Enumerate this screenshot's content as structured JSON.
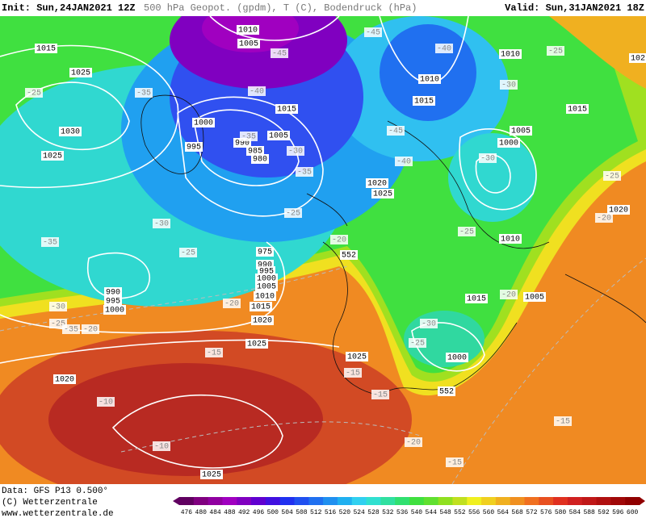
{
  "header": {
    "init": "Init: Sun,24JAN2021 12Z",
    "title": "500 hPa Geopot. (gpdm), T (C), Bodendruck (hPa)",
    "valid": "Valid: Sun,31JAN2021 18Z"
  },
  "footer": {
    "data": "Data: GFS P13 0.500°",
    "copyright": "(C) Wetterzentrale",
    "url": "www.wetterzentrale.de"
  },
  "colorbar": {
    "labels": [
      476,
      480,
      484,
      488,
      492,
      496,
      500,
      504,
      508,
      512,
      516,
      520,
      524,
      528,
      532,
      536,
      540,
      544,
      548,
      552,
      556,
      560,
      564,
      568,
      572,
      576,
      580,
      584,
      588,
      592,
      596,
      600
    ],
    "colors": [
      "#600060",
      "#800080",
      "#9000a0",
      "#a000c0",
      "#8000c0",
      "#6000d0",
      "#4010e0",
      "#2030f0",
      "#2050f0",
      "#2070f0",
      "#2090f0",
      "#20b0f0",
      "#30d0f0",
      "#30e0d0",
      "#30e0a0",
      "#30e070",
      "#40e040",
      "#60e030",
      "#90e020",
      "#c0e020",
      "#f0f020",
      "#f0d020",
      "#f0b020",
      "#f09020",
      "#f07020",
      "#e85020",
      "#e03020",
      "#d02020",
      "#c01818",
      "#b01010",
      "#a00808",
      "#900000"
    ]
  },
  "isobar_labels": [
    "1010",
    "1005",
    "1015",
    "1025",
    "1030",
    "1025",
    "1000",
    "995",
    "990",
    "985",
    "980",
    "1015",
    "1005",
    "1010",
    "1015",
    "1010",
    "1015",
    "1005",
    "1000",
    "1020",
    "1025",
    "1010",
    "975",
    "990",
    "995",
    "1000",
    "1005",
    "1010",
    "1015",
    "990",
    "995",
    "1000",
    "1020",
    "1025",
    "1025",
    "1020",
    "1015",
    "1005",
    "1000",
    "1020",
    "1025",
    "102",
    "552",
    "552"
  ],
  "temperature_labels": [
    "-45",
    "-45",
    "-40",
    "-25",
    "-35",
    "-25",
    "-40",
    "-30",
    "-35",
    "-30",
    "-45",
    "-40",
    "-35",
    "-30",
    "-25",
    "-25",
    "-30",
    "-35",
    "-25",
    "-25",
    "-20",
    "-20",
    "-20",
    "-20",
    "-30",
    "-25",
    "-35",
    "-20",
    "-30",
    "-25",
    "-15",
    "-15",
    "-15",
    "-10",
    "-10",
    "-20",
    "-15",
    "-15"
  ]
}
